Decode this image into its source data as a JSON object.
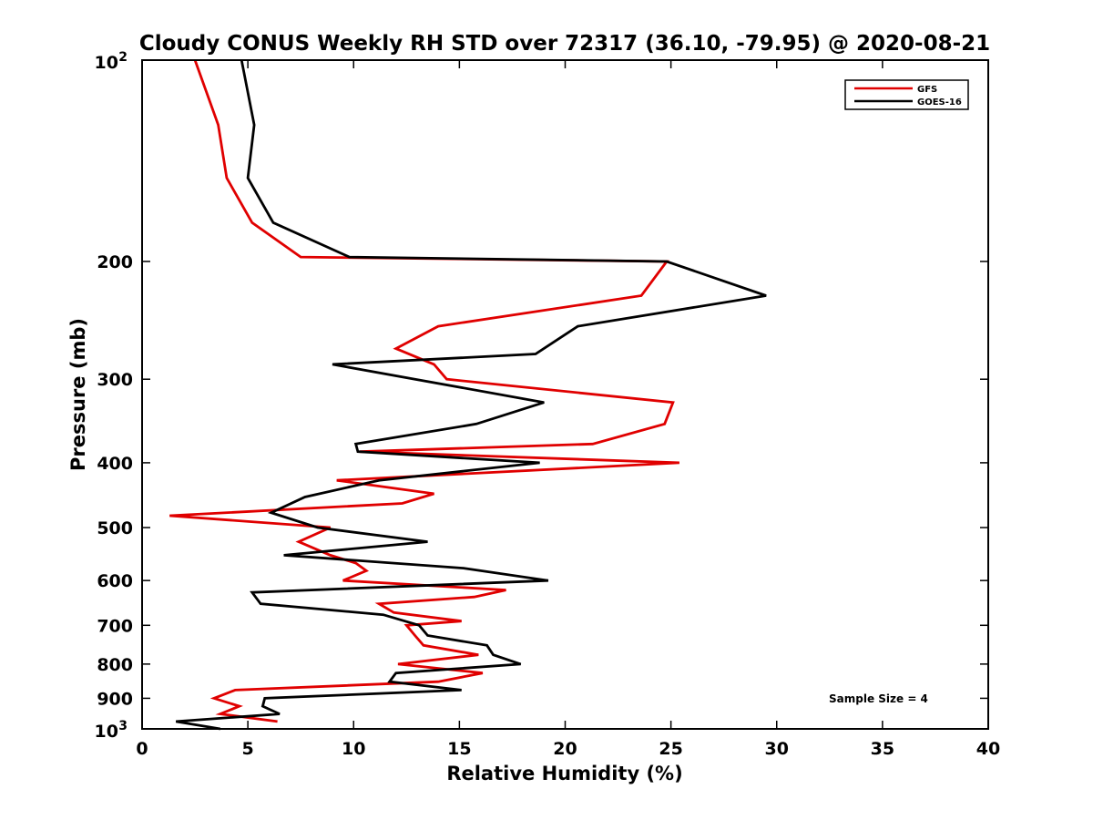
{
  "chart_data": {
    "type": "line",
    "title": "Cloudy CONUS Weekly RH STD over 72317 (36.10, -79.95) @ 2020-08-21",
    "xlabel": "Relative Humidity (%)",
    "ylabel": "Pressure (mb)",
    "xlim": [
      0,
      40
    ],
    "ylim": [
      100,
      1000
    ],
    "yscale": "log",
    "y_reversed": true,
    "grid": false,
    "legend_position": "top-right",
    "x_ticks": [
      "0",
      "5",
      "10",
      "15",
      "20",
      "25",
      "30",
      "35",
      "40"
    ],
    "y_ticks": [
      {
        "value": 100,
        "base": "10",
        "exp": "2"
      },
      {
        "value": 200,
        "label": "200"
      },
      {
        "value": 300,
        "label": "300"
      },
      {
        "value": 400,
        "label": "400"
      },
      {
        "value": 500,
        "label": "500"
      },
      {
        "value": 600,
        "label": "600"
      },
      {
        "value": 700,
        "label": "700"
      },
      {
        "value": 800,
        "label": "800"
      },
      {
        "value": 900,
        "label": "900"
      },
      {
        "value": 1000,
        "base": "10",
        "exp": "3"
      }
    ],
    "annotation": "Sample Size = 4",
    "series": [
      {
        "name": "GFS",
        "color": "#e00000",
        "points": [
          [
            2.5,
            100
          ],
          [
            3.6,
            125
          ],
          [
            4.0,
            150
          ],
          [
            5.2,
            175
          ],
          [
            7.5,
            197
          ],
          [
            24.8,
            200
          ],
          [
            23.6,
            225
          ],
          [
            14.0,
            250
          ],
          [
            12.0,
            270
          ],
          [
            13.8,
            285
          ],
          [
            14.4,
            300
          ],
          [
            25.1,
            325
          ],
          [
            24.7,
            350
          ],
          [
            21.3,
            375
          ],
          [
            10.3,
            385
          ],
          [
            25.4,
            400
          ],
          [
            9.2,
            425
          ],
          [
            13.8,
            445
          ],
          [
            12.3,
            460
          ],
          [
            1.3,
            480
          ],
          [
            8.9,
            500
          ],
          [
            7.4,
            525
          ],
          [
            8.9,
            550
          ],
          [
            10.1,
            565
          ],
          [
            10.6,
            580
          ],
          [
            9.5,
            600
          ],
          [
            17.2,
            620
          ],
          [
            15.7,
            635
          ],
          [
            11.2,
            650
          ],
          [
            11.9,
            670
          ],
          [
            15.1,
            690
          ],
          [
            12.5,
            700
          ],
          [
            12.9,
            725
          ],
          [
            13.3,
            750
          ],
          [
            15.9,
            775
          ],
          [
            12.1,
            800
          ],
          [
            16.1,
            825
          ],
          [
            14.0,
            850
          ],
          [
            4.4,
            875
          ],
          [
            3.4,
            900
          ],
          [
            4.6,
            925
          ],
          [
            3.7,
            950
          ],
          [
            6.4,
            975
          ]
        ]
      },
      {
        "name": "GOES-16",
        "color": "#000000",
        "points": [
          [
            4.7,
            100
          ],
          [
            5.3,
            125
          ],
          [
            5.0,
            150
          ],
          [
            6.2,
            175
          ],
          [
            9.8,
            197
          ],
          [
            24.8,
            200
          ],
          [
            29.5,
            225
          ],
          [
            20.6,
            250
          ],
          [
            18.6,
            275
          ],
          [
            9.0,
            285
          ],
          [
            12.9,
            300
          ],
          [
            19.0,
            325
          ],
          [
            15.8,
            350
          ],
          [
            10.1,
            375
          ],
          [
            10.2,
            385
          ],
          [
            18.8,
            400
          ],
          [
            11.2,
            425
          ],
          [
            7.7,
            450
          ],
          [
            6.1,
            475
          ],
          [
            8.3,
            500
          ],
          [
            13.5,
            525
          ],
          [
            6.7,
            550
          ],
          [
            15.2,
            575
          ],
          [
            19.2,
            600
          ],
          [
            5.2,
            625
          ],
          [
            5.6,
            650
          ],
          [
            11.4,
            675
          ],
          [
            13.1,
            700
          ],
          [
            13.5,
            725
          ],
          [
            16.3,
            750
          ],
          [
            16.6,
            775
          ],
          [
            17.9,
            800
          ],
          [
            12.0,
            825
          ],
          [
            11.7,
            850
          ],
          [
            15.1,
            875
          ],
          [
            5.8,
            900
          ],
          [
            5.7,
            925
          ],
          [
            6.5,
            950
          ],
          [
            1.6,
            975
          ],
          [
            3.7,
            1000
          ]
        ]
      }
    ]
  }
}
